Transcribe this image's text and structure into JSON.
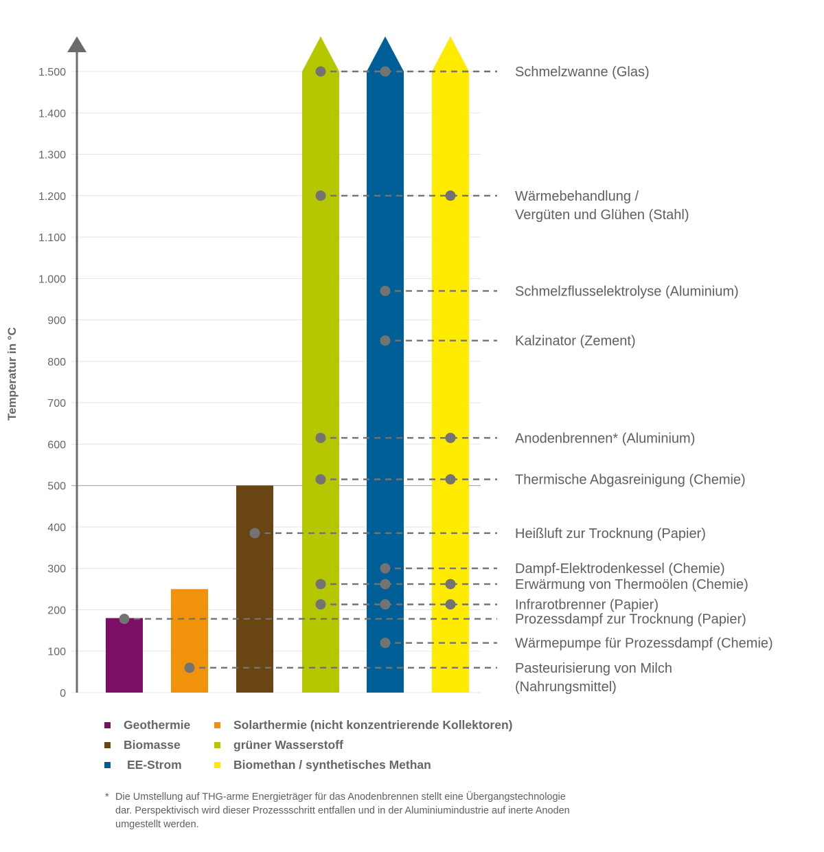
{
  "chart_data": {
    "type": "bar",
    "title": "",
    "xlabel": "",
    "ylabel": "Temperatur in °C",
    "ylim": [
      0,
      1500
    ],
    "yticks": [
      0,
      100,
      200,
      300,
      400,
      500,
      600,
      700,
      800,
      900,
      1000,
      1100,
      1200,
      1300,
      1400,
      1500
    ],
    "ytick_labels": [
      "0",
      "100",
      "200",
      "300",
      "400",
      "500",
      "600",
      "700",
      "800",
      "900",
      "1.000",
      "1.100",
      "1.200",
      "1.300",
      "1.400",
      "1.500"
    ],
    "grid": true,
    "reference_line": 500,
    "legend_position": "bottom",
    "series": [
      {
        "name": "Geothermie",
        "color": "#7b0e65",
        "max_temp": 180,
        "open_ended": false
      },
      {
        "name": "Solarthermie (nicht konzentrierende Kollektoren)",
        "color": "#f0930a",
        "max_temp": 250,
        "open_ended": false
      },
      {
        "name": "Biomasse",
        "color": "#684512",
        "max_temp": 500,
        "open_ended": false
      },
      {
        "name": "grüner Wasserstoff",
        "color": "#b5c701",
        "max_temp": 1500,
        "open_ended": true
      },
      {
        "name": "EE-Strom",
        "color": "#015f97",
        "max_temp": 1500,
        "open_ended": true
      },
      {
        "name": "Biomethan / synthetisches Methan",
        "color": "#ffeb00",
        "max_temp": 1500,
        "open_ended": true
      }
    ],
    "processes": [
      {
        "label": [
          "Schmelzwanne (Glas)"
        ],
        "temp": 1500,
        "carriers": [
          "grüner Wasserstoff",
          "EE-Strom"
        ]
      },
      {
        "label": [
          "Wärmebehandlung /",
          "Vergüten und Glühen (Stahl)"
        ],
        "temp": 1200,
        "carriers": [
          "grüner Wasserstoff",
          "Biomethan / synthetisches Methan"
        ]
      },
      {
        "label": [
          "Schmelzflusselektrolyse (Aluminium)"
        ],
        "temp": 970,
        "carriers": [
          "EE-Strom"
        ]
      },
      {
        "label": [
          "Kalzinator (Zement)"
        ],
        "temp": 850,
        "carriers": [
          "EE-Strom"
        ]
      },
      {
        "label": [
          "Anodenbrennen* (Aluminium)"
        ],
        "temp": 615,
        "carriers": [
          "grüner Wasserstoff",
          "Biomethan / synthetisches Methan"
        ]
      },
      {
        "label": [
          "Thermische Abgasreinigung (Chemie)"
        ],
        "temp": 515,
        "carriers": [
          "grüner Wasserstoff",
          "Biomethan / synthetisches Methan"
        ]
      },
      {
        "label": [
          "Heißluft zur Trocknung (Papier)"
        ],
        "temp": 385,
        "carriers": [
          "Biomasse"
        ]
      },
      {
        "label": [
          "Dampf-Elektrodenkessel (Chemie)"
        ],
        "temp": 300,
        "carriers": [
          "EE-Strom"
        ]
      },
      {
        "label": [
          "Erwärmung von Thermoölen (Chemie)"
        ],
        "temp": 262,
        "carriers": [
          "grüner Wasserstoff",
          "EE-Strom",
          "Biomethan / synthetisches Methan"
        ]
      },
      {
        "label": [
          "Infrarotbrenner (Papier)"
        ],
        "temp": 213,
        "carriers": [
          "grüner Wasserstoff",
          "EE-Strom",
          "Biomethan / synthetisches Methan"
        ]
      },
      {
        "label": [
          "Prozessdampf zur Trocknung (Papier)"
        ],
        "temp": 178,
        "carriers": [
          "Geothermie"
        ]
      },
      {
        "label": [
          "Wärmepumpe für Prozessdampf (Chemie)"
        ],
        "temp": 120,
        "carriers": [
          "EE-Strom"
        ]
      },
      {
        "label": [
          "Pasteurisierung von Milch",
          "(Nahrungsmittel)"
        ],
        "temp": 60,
        "carriers": [
          "Solarthermie (nicht konzentrierende Kollektoren)"
        ]
      }
    ]
  },
  "legend": {
    "items": [
      {
        "label": "Geothermie",
        "color": "#7b0e65"
      },
      {
        "label": "Solarthermie (nicht konzentrierende Kollektoren)",
        "color": "#f0930a"
      },
      {
        "label": "Biomasse",
        "color": "#684512"
      },
      {
        "label": "grüner Wasserstoff",
        "color": "#b5c701"
      },
      {
        "label": "EE-Strom",
        "color": "#015f97"
      },
      {
        "label": "Biomethan / synthetisches Methan",
        "color": "#ffeb00"
      }
    ]
  },
  "footnote": {
    "marker": "*",
    "text": "Die Umstellung auf THG-arme Energieträger für das Anodenbrennen stellt eine Übergangstechnologie dar. Perspektivisch wird dieser Prozessschritt entfallen und in der Aluminiumindustrie auf inerte Anoden umgestellt werden."
  },
  "colors": {
    "axis": "#6b6b6b",
    "grid": "#e3e3e3",
    "reference_line": "#a8a8a8",
    "marker": "#737373",
    "text": "#5f5f5f"
  }
}
